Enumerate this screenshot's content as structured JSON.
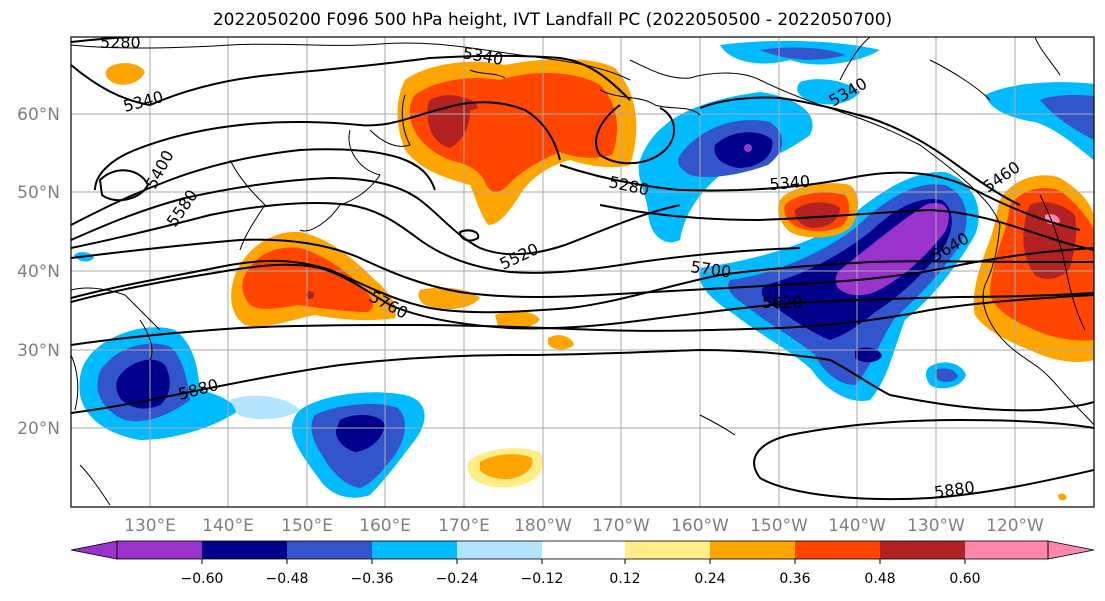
{
  "title": "2022050200 F096 500 hPa height, IVT Landfall PC (2022050500 - 2022050700)",
  "lat_labels": [
    "60°N",
    "50°N",
    "40°N",
    "30°N",
    "20°N"
  ],
  "lon_labels": [
    "130°E",
    "140°E",
    "150°E",
    "160°E",
    "170°E",
    "180°W",
    "170°W",
    "160°W",
    "150°W",
    "140°W",
    "130°W",
    "120°W"
  ],
  "contour_labels": [
    "5280",
    "5340",
    "5400",
    "5580",
    "5340",
    "5280",
    "5340",
    "5460",
    "5520",
    "5640",
    "5700",
    "5760",
    "5820",
    "5880",
    "5880"
  ],
  "colorbar": {
    "colors": [
      "#9933cc",
      "#00008b",
      "#3355cc",
      "#00bbff",
      "#b3e5ff",
      "#ffffff",
      "#ffee88",
      "#ffa500",
      "#ff4500",
      "#b22222",
      "#ff88aa"
    ],
    "tick_labels": [
      "−0.60",
      "−0.48",
      "−0.36",
      "−0.24",
      "−0.12",
      "0.12",
      "0.24",
      "0.36",
      "0.48",
      "0.60"
    ]
  },
  "map_features": [
    "coastlines",
    "graticule",
    "500 hPa height contours",
    "IVT principal component shading"
  ]
}
